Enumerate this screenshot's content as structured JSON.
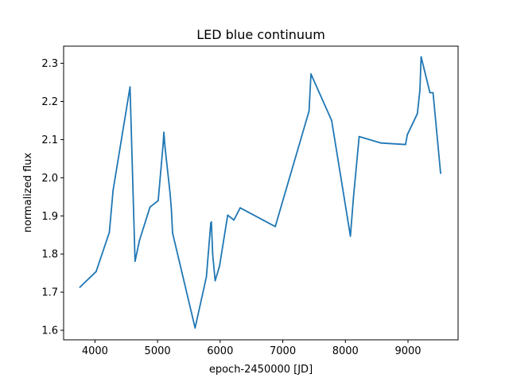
{
  "chart_data": {
    "type": "line",
    "title": "LED blue continuum",
    "xlabel": "epoch-2450000 [JD]",
    "ylabel": "normalized flux",
    "xlim": [
      3500,
      9800
    ],
    "ylim": [
      1.575,
      2.345
    ],
    "xticks": [
      4000,
      5000,
      6000,
      7000,
      8000,
      9000
    ],
    "yticks": [
      1.6,
      1.7,
      1.8,
      1.9,
      2.0,
      2.1,
      2.2,
      2.3
    ],
    "grid": false,
    "color": "#1f77b4",
    "series": [
      {
        "x": [
          3760,
          4020,
          4230,
          4290,
          4560,
          4640,
          4710,
          4880,
          5010,
          5090,
          5100,
          5120,
          5200,
          5220,
          5240,
          5600,
          5780,
          5850,
          5860,
          5880,
          5920,
          5990,
          6120,
          6220,
          6320,
          6880,
          7420,
          7450,
          7780,
          8080,
          8130,
          8220,
          8570,
          8960,
          8990,
          9150,
          9190,
          9210,
          9350,
          9400,
          9520
        ],
        "y": [
          1.713,
          1.754,
          1.857,
          1.967,
          2.238,
          1.781,
          1.835,
          1.923,
          1.94,
          2.09,
          2.119,
          2.08,
          1.96,
          1.92,
          1.855,
          1.606,
          1.74,
          1.88,
          1.884,
          1.8,
          1.73,
          1.768,
          1.902,
          1.889,
          1.921,
          1.872,
          2.175,
          2.272,
          2.15,
          1.847,
          1.95,
          2.108,
          2.091,
          2.087,
          2.113,
          2.168,
          2.23,
          2.317,
          2.223,
          2.223,
          2.012
        ]
      }
    ]
  }
}
